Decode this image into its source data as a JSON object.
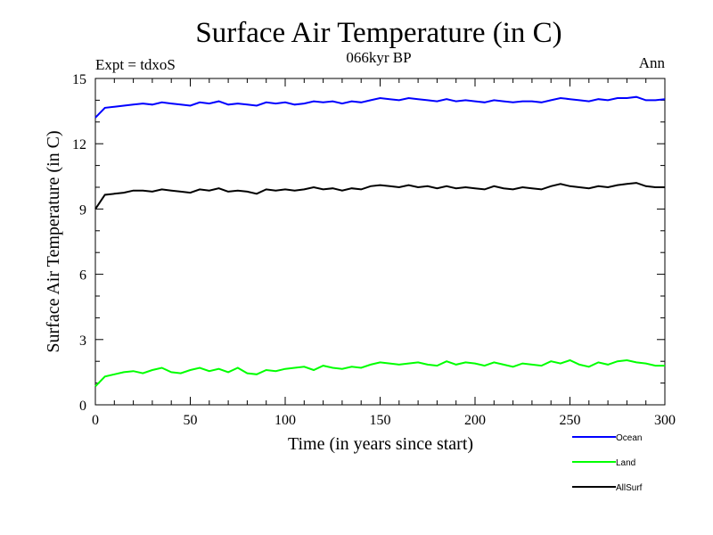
{
  "chart_data": {
    "type": "line",
    "title": "Surface Air Temperature (in C)",
    "subtitle": "066kyr BP",
    "left_label": "Expt = tdxoS",
    "right_label": "Ann",
    "xlabel": "Time (in years since start)",
    "ylabel": "Surface Air Temperature (in C)",
    "xlim": [
      0,
      300
    ],
    "ylim": [
      0,
      15
    ],
    "xticks": [
      0,
      50,
      100,
      150,
      200,
      250,
      300
    ],
    "yticks": [
      0,
      3,
      6,
      9,
      12,
      15
    ],
    "xtick_labels": [
      "0",
      "50",
      "100",
      "150",
      "200",
      "250",
      "300"
    ],
    "ytick_labels": [
      "0",
      "3",
      "6",
      "9",
      "12",
      "15"
    ],
    "grid": false,
    "legend_position": "bottom-right, below plot",
    "x": [
      0,
      5,
      10,
      15,
      20,
      25,
      30,
      35,
      40,
      45,
      50,
      55,
      60,
      65,
      70,
      75,
      80,
      85,
      90,
      95,
      100,
      105,
      110,
      115,
      120,
      125,
      130,
      135,
      140,
      145,
      150,
      155,
      160,
      165,
      170,
      175,
      180,
      185,
      190,
      195,
      200,
      205,
      210,
      215,
      220,
      225,
      230,
      235,
      240,
      245,
      250,
      255,
      260,
      265,
      270,
      275,
      280,
      285,
      290,
      295,
      300
    ],
    "series": [
      {
        "name": "Ocean",
        "color": "#0000ff",
        "values": [
          13.2,
          13.65,
          13.7,
          13.75,
          13.8,
          13.85,
          13.8,
          13.9,
          13.85,
          13.8,
          13.75,
          13.9,
          13.85,
          13.95,
          13.8,
          13.85,
          13.8,
          13.75,
          13.9,
          13.85,
          13.9,
          13.8,
          13.85,
          13.95,
          13.9,
          13.95,
          13.85,
          13.95,
          13.9,
          14.0,
          14.1,
          14.05,
          14.0,
          14.1,
          14.05,
          14.0,
          13.95,
          14.05,
          13.95,
          14.0,
          13.95,
          13.9,
          14.0,
          13.95,
          13.9,
          13.95,
          13.95,
          13.9,
          14.0,
          14.1,
          14.05,
          14.0,
          13.95,
          14.05,
          14.0,
          14.1,
          14.1,
          14.15,
          14.0,
          14.0,
          14.05
        ]
      },
      {
        "name": "Land",
        "color": "#00ff00",
        "values": [
          0.85,
          1.3,
          1.4,
          1.5,
          1.55,
          1.45,
          1.6,
          1.7,
          1.5,
          1.45,
          1.6,
          1.7,
          1.55,
          1.65,
          1.5,
          1.7,
          1.45,
          1.4,
          1.6,
          1.55,
          1.65,
          1.7,
          1.75,
          1.6,
          1.8,
          1.7,
          1.65,
          1.75,
          1.7,
          1.85,
          1.95,
          1.9,
          1.85,
          1.9,
          1.95,
          1.85,
          1.8,
          2.0,
          1.85,
          1.95,
          1.9,
          1.8,
          1.95,
          1.85,
          1.75,
          1.9,
          1.85,
          1.8,
          2.0,
          1.9,
          2.05,
          1.85,
          1.75,
          1.95,
          1.85,
          2.0,
          2.05,
          1.95,
          1.9,
          1.8,
          1.8
        ]
      },
      {
        "name": "AllSurf",
        "color": "#000000",
        "values": [
          9.0,
          9.65,
          9.7,
          9.75,
          9.85,
          9.85,
          9.8,
          9.9,
          9.85,
          9.8,
          9.75,
          9.9,
          9.85,
          9.95,
          9.8,
          9.85,
          9.8,
          9.7,
          9.9,
          9.85,
          9.9,
          9.85,
          9.9,
          10.0,
          9.9,
          9.95,
          9.85,
          9.95,
          9.9,
          10.05,
          10.1,
          10.05,
          10.0,
          10.1,
          10.0,
          10.05,
          9.95,
          10.05,
          9.95,
          10.0,
          9.95,
          9.9,
          10.05,
          9.95,
          9.9,
          10.0,
          9.95,
          9.9,
          10.05,
          10.15,
          10.05,
          10.0,
          9.95,
          10.05,
          10.0,
          10.1,
          10.15,
          10.2,
          10.05,
          10.0,
          10.0
        ]
      }
    ]
  }
}
